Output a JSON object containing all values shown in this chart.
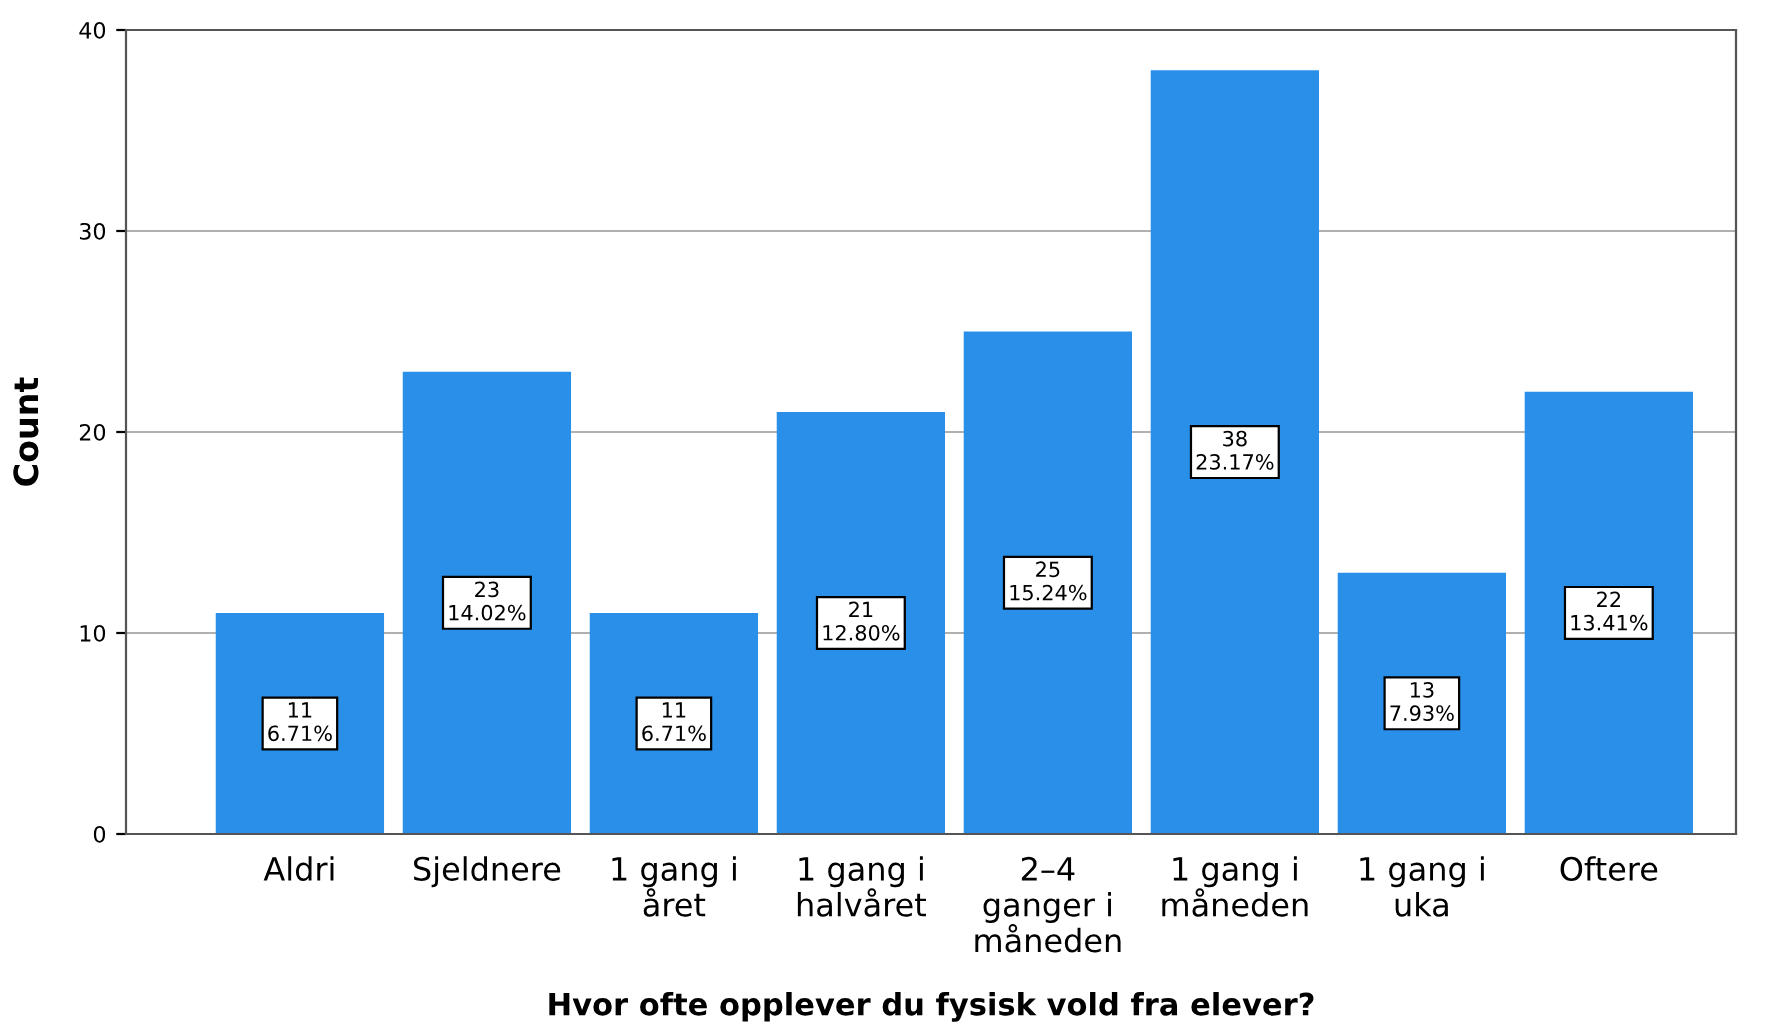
{
  "chart_data": {
    "type": "bar",
    "categories": [
      "Aldri",
      "Sjeldnere",
      "1 gang i\nåret",
      "1 gang i\nhalvåret",
      "2–4\nganger i\nmåneden",
      "1 gang i\nmåneden",
      "1 gang i\nuka",
      "Oftere"
    ],
    "values": [
      11,
      23,
      11,
      21,
      25,
      38,
      13,
      22
    ],
    "value_labels": [
      "11\n6.71%",
      "23\n14.02%",
      "11\n6.71%",
      "21\n12.80%",
      "25\n15.24%",
      "38\n23.17%",
      "13\n7.93%",
      "22\n13.41%"
    ],
    "color": "#2a8fe8",
    "xlabel": "Hvor ofte opplever du fysisk vold fra elever?",
    "ylabel": "Count",
    "ylim": [
      0,
      40
    ],
    "yticks": [
      0,
      10,
      20,
      30,
      40
    ],
    "grid": "y"
  }
}
